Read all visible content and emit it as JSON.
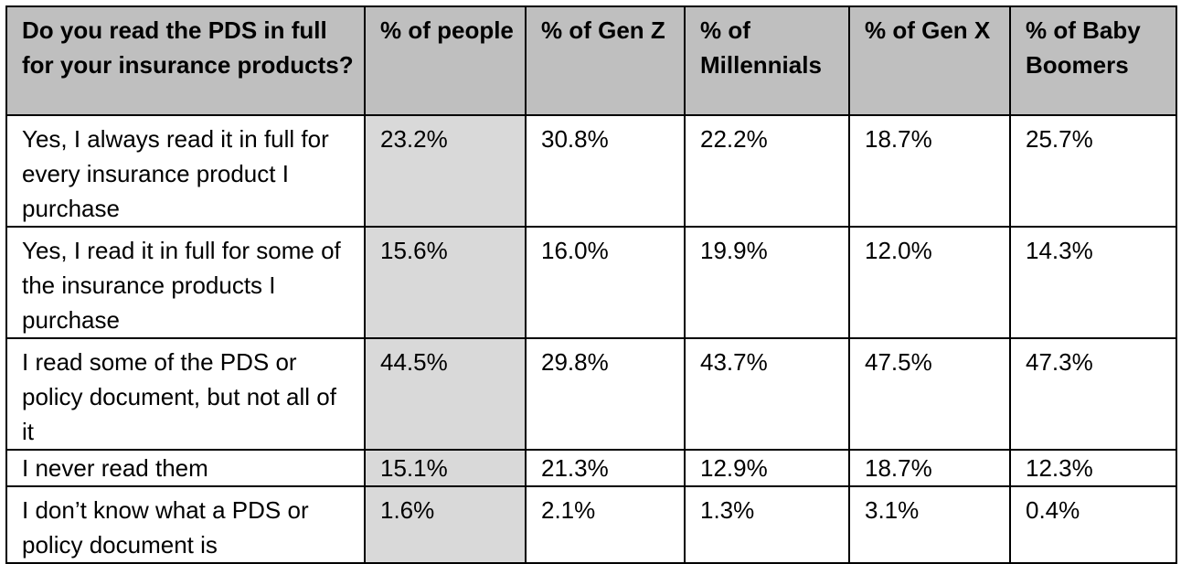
{
  "table": {
    "headers": [
      "Do you read the PDS in full for your insurance products?",
      "% of people",
      "% of Gen Z",
      "% of Millennials",
      "% of Gen X",
      "% of Baby Boomers"
    ],
    "rows": [
      {
        "answer": "Yes, I always read it in full for every insurance product I purchase",
        "people": "23.2%",
        "gen_z": "30.8%",
        "millennials": "22.2%",
        "gen_x": "18.7%",
        "baby_boomers": "25.7%"
      },
      {
        "answer": "Yes, I read it in full for some of the insurance products I purchase",
        "people": "15.6%",
        "gen_z": "16.0%",
        "millennials": "19.9%",
        "gen_x": "12.0%",
        "baby_boomers": "14.3%"
      },
      {
        "answer": "I read some of the PDS or policy document, but not all of it",
        "people": "44.5%",
        "gen_z": "29.8%",
        "millennials": "43.7%",
        "gen_x": "47.5%",
        "baby_boomers": "47.3%"
      },
      {
        "answer": "I never read them",
        "people": "15.1%",
        "gen_z": "21.3%",
        "millennials": "12.9%",
        "gen_x": "18.7%",
        "baby_boomers": "12.3%"
      },
      {
        "answer": "I don’t know what a PDS or policy document is",
        "people": "1.6%",
        "gen_z": "2.1%",
        "millennials": "1.3%",
        "gen_x": "3.1%",
        "baby_boomers": "0.4%"
      }
    ]
  },
  "colors": {
    "header_bg": "#bfbfbf",
    "people_column_bg": "#d9d9d9",
    "border": "#000000"
  }
}
